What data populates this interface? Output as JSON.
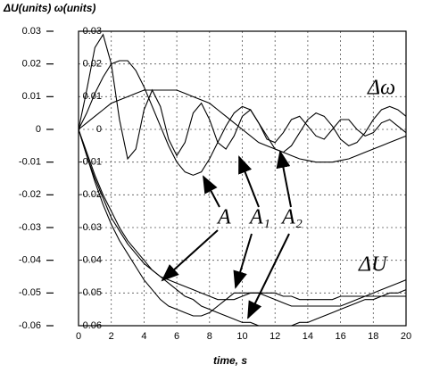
{
  "chart_data": {
    "type": "line",
    "y_label": "ΔU(units) ω(units)",
    "x_label": "time, s",
    "annotations": [
      "Δω",
      "ΔU",
      "A",
      "A₁",
      "A₂"
    ],
    "x": [
      0,
      0.5,
      1,
      1.5,
      2,
      2.5,
      3,
      3.5,
      4,
      4.5,
      5,
      5.5,
      6,
      6.5,
      7,
      7.5,
      8,
      8.5,
      9,
      9.5,
      10,
      10.5,
      11,
      11.5,
      12,
      12.5,
      13,
      13.5,
      14,
      14.5,
      15,
      15.5,
      16,
      16.5,
      17,
      17.5,
      18,
      18.5,
      19,
      19.5,
      20
    ],
    "series": [
      {
        "color": "#000000",
        "values": [
          0,
          0.012,
          0.025,
          0.029,
          0.02,
          0.003,
          -0.009,
          -0.006,
          0.006,
          0.012,
          0.007,
          -0.003,
          -0.008,
          -0.004,
          0.005,
          0.008,
          0.003,
          -0.004,
          -0.006,
          -0.002,
          0.004,
          0.006,
          0.002,
          -0.003,
          -0.004,
          -0.001,
          0.003,
          0.004,
          0.001,
          -0.002,
          -0.003,
          0,
          0.003,
          0.003,
          0,
          -0.002,
          -0.001,
          0.002,
          0.003,
          0.001,
          -0.001
        ]
      },
      {
        "color": "#000000",
        "values": [
          0,
          0.005,
          0.011,
          0.016,
          0.02,
          0.021,
          0.021,
          0.018,
          0.013,
          0.007,
          0.001,
          -0.005,
          -0.01,
          -0.013,
          -0.014,
          -0.013,
          -0.009,
          -0.004,
          0.001,
          0.005,
          0.007,
          0.006,
          0.002,
          -0.002,
          -0.006,
          -0.007,
          -0.005,
          -0.001,
          0.003,
          0.005,
          0.004,
          0.001,
          -0.003,
          -0.005,
          -0.004,
          -0.001,
          0.003,
          0.006,
          0.007,
          0.006,
          0.004
        ]
      },
      {
        "color": "#000000",
        "values": [
          0,
          0.002,
          0.004,
          0.006,
          0.008,
          0.009,
          0.01,
          0.011,
          0.012,
          0.012,
          0.012,
          0.012,
          0.012,
          0.011,
          0.01,
          0.009,
          0.008,
          0.006,
          0.004,
          0.002,
          0,
          -0.002,
          -0.004,
          -0.005,
          -0.006,
          -0.007,
          -0.008,
          -0.009,
          -0.0095,
          -0.01,
          -0.01,
          -0.01,
          -0.0095,
          -0.009,
          -0.008,
          -0.007,
          -0.006,
          -0.005,
          -0.004,
          -0.003,
          -0.002
        ]
      },
      {
        "color": "#000000",
        "values": [
          0,
          -0.008,
          -0.015,
          -0.021,
          -0.027,
          -0.031,
          -0.035,
          -0.038,
          -0.041,
          -0.043,
          -0.045,
          -0.046,
          -0.047,
          -0.048,
          -0.049,
          -0.05,
          -0.051,
          -0.052,
          -0.052,
          -0.052,
          -0.051,
          -0.05,
          -0.05,
          -0.05,
          -0.05,
          -0.051,
          -0.051,
          -0.052,
          -0.052,
          -0.052,
          -0.052,
          -0.052,
          -0.051,
          -0.051,
          -0.051,
          -0.051,
          -0.051,
          -0.051,
          -0.051,
          -0.051,
          -0.051
        ]
      },
      {
        "color": "#000000",
        "values": [
          0,
          -0.008,
          -0.016,
          -0.023,
          -0.029,
          -0.034,
          -0.038,
          -0.042,
          -0.046,
          -0.049,
          -0.052,
          -0.054,
          -0.055,
          -0.056,
          -0.057,
          -0.057,
          -0.056,
          -0.054,
          -0.052,
          -0.05,
          -0.05,
          -0.05,
          -0.05,
          -0.051,
          -0.052,
          -0.053,
          -0.054,
          -0.054,
          -0.054,
          -0.054,
          -0.054,
          -0.054,
          -0.054,
          -0.053,
          -0.052,
          -0.051,
          -0.05,
          -0.049,
          -0.048,
          -0.047,
          -0.046
        ]
      },
      {
        "color": "#000000",
        "values": [
          0,
          -0.007,
          -0.014,
          -0.02,
          -0.025,
          -0.03,
          -0.034,
          -0.037,
          -0.04,
          -0.043,
          -0.045,
          -0.047,
          -0.049,
          -0.051,
          -0.052,
          -0.054,
          -0.055,
          -0.056,
          -0.057,
          -0.058,
          -0.059,
          -0.059,
          -0.06,
          -0.06,
          -0.06,
          -0.06,
          -0.06,
          -0.059,
          -0.059,
          -0.058,
          -0.057,
          -0.056,
          -0.055,
          -0.054,
          -0.053,
          -0.052,
          -0.052,
          -0.051,
          -0.05,
          -0.05,
          -0.049
        ]
      }
    ],
    "xlim": [
      0,
      20
    ],
    "xticks": [
      0,
      2,
      4,
      6,
      8,
      10,
      12,
      14,
      16,
      18,
      20
    ],
    "ylim": [
      -0.06,
      0.03
    ],
    "yticks": [
      0.03,
      0.02,
      0.01,
      0,
      -0.01,
      -0.02,
      -0.03,
      -0.04,
      -0.05,
      -0.06
    ],
    "y2lim": [
      -0.06,
      0.03
    ],
    "y2ticks": [
      0.03,
      0.02,
      0.01,
      0,
      -0.01,
      -0.02,
      -0.03,
      -0.04,
      -0.05,
      -0.06
    ],
    "grid": true
  }
}
